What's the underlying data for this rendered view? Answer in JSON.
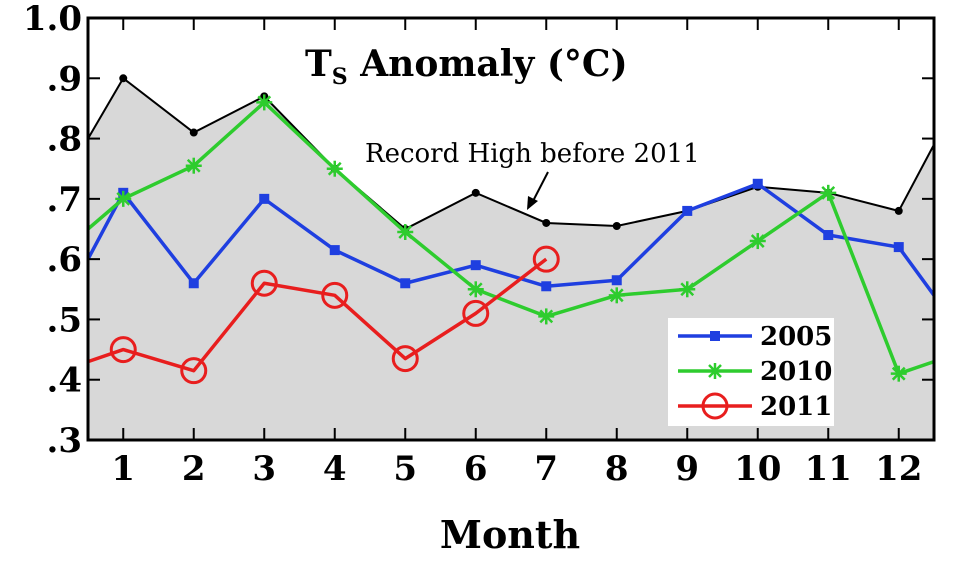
{
  "chart_data": {
    "type": "line",
    "title_main": "T",
    "title_sub": "S",
    "title_rest": " Anomaly (°C)",
    "xlabel": "Month",
    "ylabel": "",
    "x": [
      0.5,
      1,
      2,
      3,
      4,
      5,
      6,
      7,
      8,
      9,
      10,
      11,
      12,
      12.5
    ],
    "xticks": [
      "1",
      "2",
      "3",
      "4",
      "5",
      "6",
      "7",
      "8",
      "9",
      "10",
      "11",
      "12"
    ],
    "xlim": [
      0.5,
      12.5
    ],
    "ylim": [
      0.3,
      1.0
    ],
    "yticks": [
      {
        "value": 0.3,
        "label": ".3"
      },
      {
        "value": 0.4,
        "label": ".4"
      },
      {
        "value": 0.5,
        "label": ".5"
      },
      {
        "value": 0.6,
        "label": ".6"
      },
      {
        "value": 0.7,
        "label": ".7"
      },
      {
        "value": 0.8,
        "label": ".8"
      },
      {
        "value": 0.9,
        "label": ".9"
      },
      {
        "value": 1.0,
        "label": "1.0"
      }
    ],
    "record_high": {
      "label": "Record High before 2011",
      "x": [
        0.5,
        1,
        2,
        3,
        4,
        5,
        6,
        7,
        8,
        9,
        10,
        11,
        12,
        12.5
      ],
      "values": [
        0.8,
        0.9,
        0.81,
        0.87,
        0.75,
        0.65,
        0.71,
        0.66,
        0.655,
        0.68,
        0.72,
        0.71,
        0.68,
        0.79
      ],
      "fill_color": "#d8d8d8",
      "line_color": "#000000"
    },
    "series": [
      {
        "name": "2005",
        "color": "#1f3fe0",
        "marker": "square",
        "x": [
          0.5,
          1,
          2,
          3,
          4,
          5,
          6,
          7,
          8,
          9,
          10,
          11,
          12,
          12.5
        ],
        "values": [
          0.6,
          0.71,
          0.56,
          0.7,
          0.615,
          0.56,
          0.59,
          0.555,
          0.565,
          0.68,
          0.725,
          0.64,
          0.62,
          0.54
        ]
      },
      {
        "name": "2010",
        "color": "#2ecc2e",
        "marker": "star",
        "x": [
          0.5,
          1,
          2,
          3,
          4,
          5,
          6,
          7,
          8,
          9,
          10,
          11,
          12,
          12.5
        ],
        "values": [
          0.65,
          0.7,
          0.755,
          0.86,
          0.75,
          0.645,
          0.55,
          0.505,
          0.54,
          0.55,
          0.63,
          0.71,
          0.41,
          0.43
        ]
      },
      {
        "name": "2011",
        "color": "#e81e1e",
        "marker": "circle",
        "x": [
          0.5,
          1,
          2,
          3,
          4,
          5,
          6,
          7
        ],
        "values": [
          0.43,
          0.45,
          0.415,
          0.56,
          0.54,
          0.435,
          0.51,
          0.6
        ]
      }
    ],
    "legend_position": "bottom-right",
    "grid": false
  }
}
